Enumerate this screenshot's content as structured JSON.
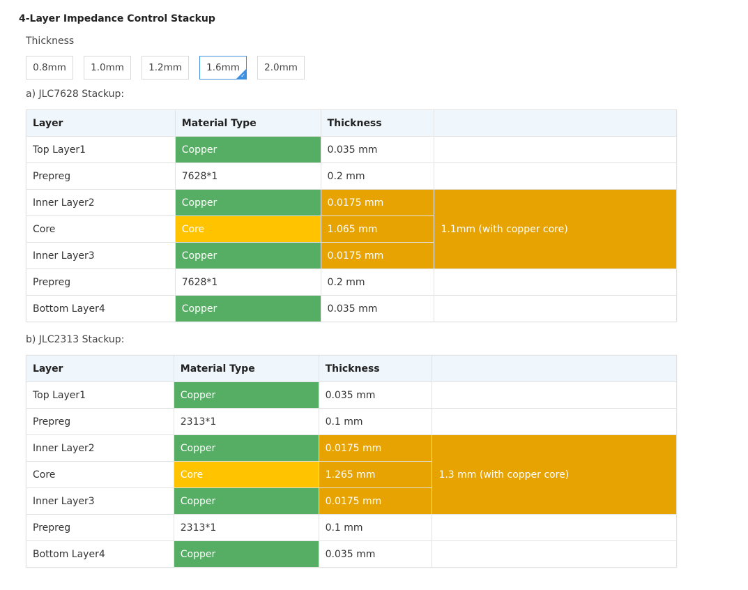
{
  "title": "4-Layer Impedance Control Stackup",
  "thickness_label": "Thickness",
  "thickness_options": [
    "0.8mm",
    "1.0mm",
    "1.2mm",
    "1.6mm",
    "2.0mm"
  ],
  "selected_thickness": "1.6mm",
  "colors": {
    "copper": "#56ae64",
    "core": "#ffc300",
    "highlight": "#e6a302",
    "header": "#eff6fc",
    "selected_border": "#3d8fe0"
  },
  "stackups": [
    {
      "label": "a) JLC7628 Stackup:",
      "headers": [
        "Layer",
        "Material Type",
        "Thickness"
      ],
      "rows": [
        {
          "layer": "Top Layer1",
          "material": "Copper",
          "thickness": "0.035 mm"
        },
        {
          "layer": "Prepreg",
          "material": "7628*1",
          "thickness": "0.2 mm"
        },
        {
          "layer": "Inner Layer2",
          "material": "Copper",
          "thickness": "0.0175 mm"
        },
        {
          "layer": "Core",
          "material": "Core",
          "thickness": "1.065 mm"
        },
        {
          "layer": "Inner Layer3",
          "material": "Copper",
          "thickness": "0.0175 mm"
        },
        {
          "layer": "Prepreg",
          "material": "7628*1",
          "thickness": "0.2 mm"
        },
        {
          "layer": "Bottom Layer4",
          "material": "Copper",
          "thickness": "0.035 mm"
        }
      ],
      "core_note": "1.1mm (with copper core)"
    },
    {
      "label": "b) JLC2313 Stackup:",
      "headers": [
        "Layer",
        "Material Type",
        "Thickness"
      ],
      "rows": [
        {
          "layer": "Top Layer1",
          "material": "Copper",
          "thickness": "0.035 mm"
        },
        {
          "layer": "Prepreg",
          "material": "2313*1",
          "thickness": "0.1 mm"
        },
        {
          "layer": "Inner Layer2",
          "material": "Copper",
          "thickness": "0.0175 mm"
        },
        {
          "layer": "Core",
          "material": "Core",
          "thickness": "1.265 mm"
        },
        {
          "layer": "Inner Layer3",
          "material": "Copper",
          "thickness": "0.0175 mm"
        },
        {
          "layer": "Prepreg",
          "material": "2313*1",
          "thickness": "0.1 mm"
        },
        {
          "layer": "Bottom Layer4",
          "material": "Copper",
          "thickness": "0.035 mm"
        }
      ],
      "core_note": "1.3 mm (with copper core)"
    }
  ]
}
